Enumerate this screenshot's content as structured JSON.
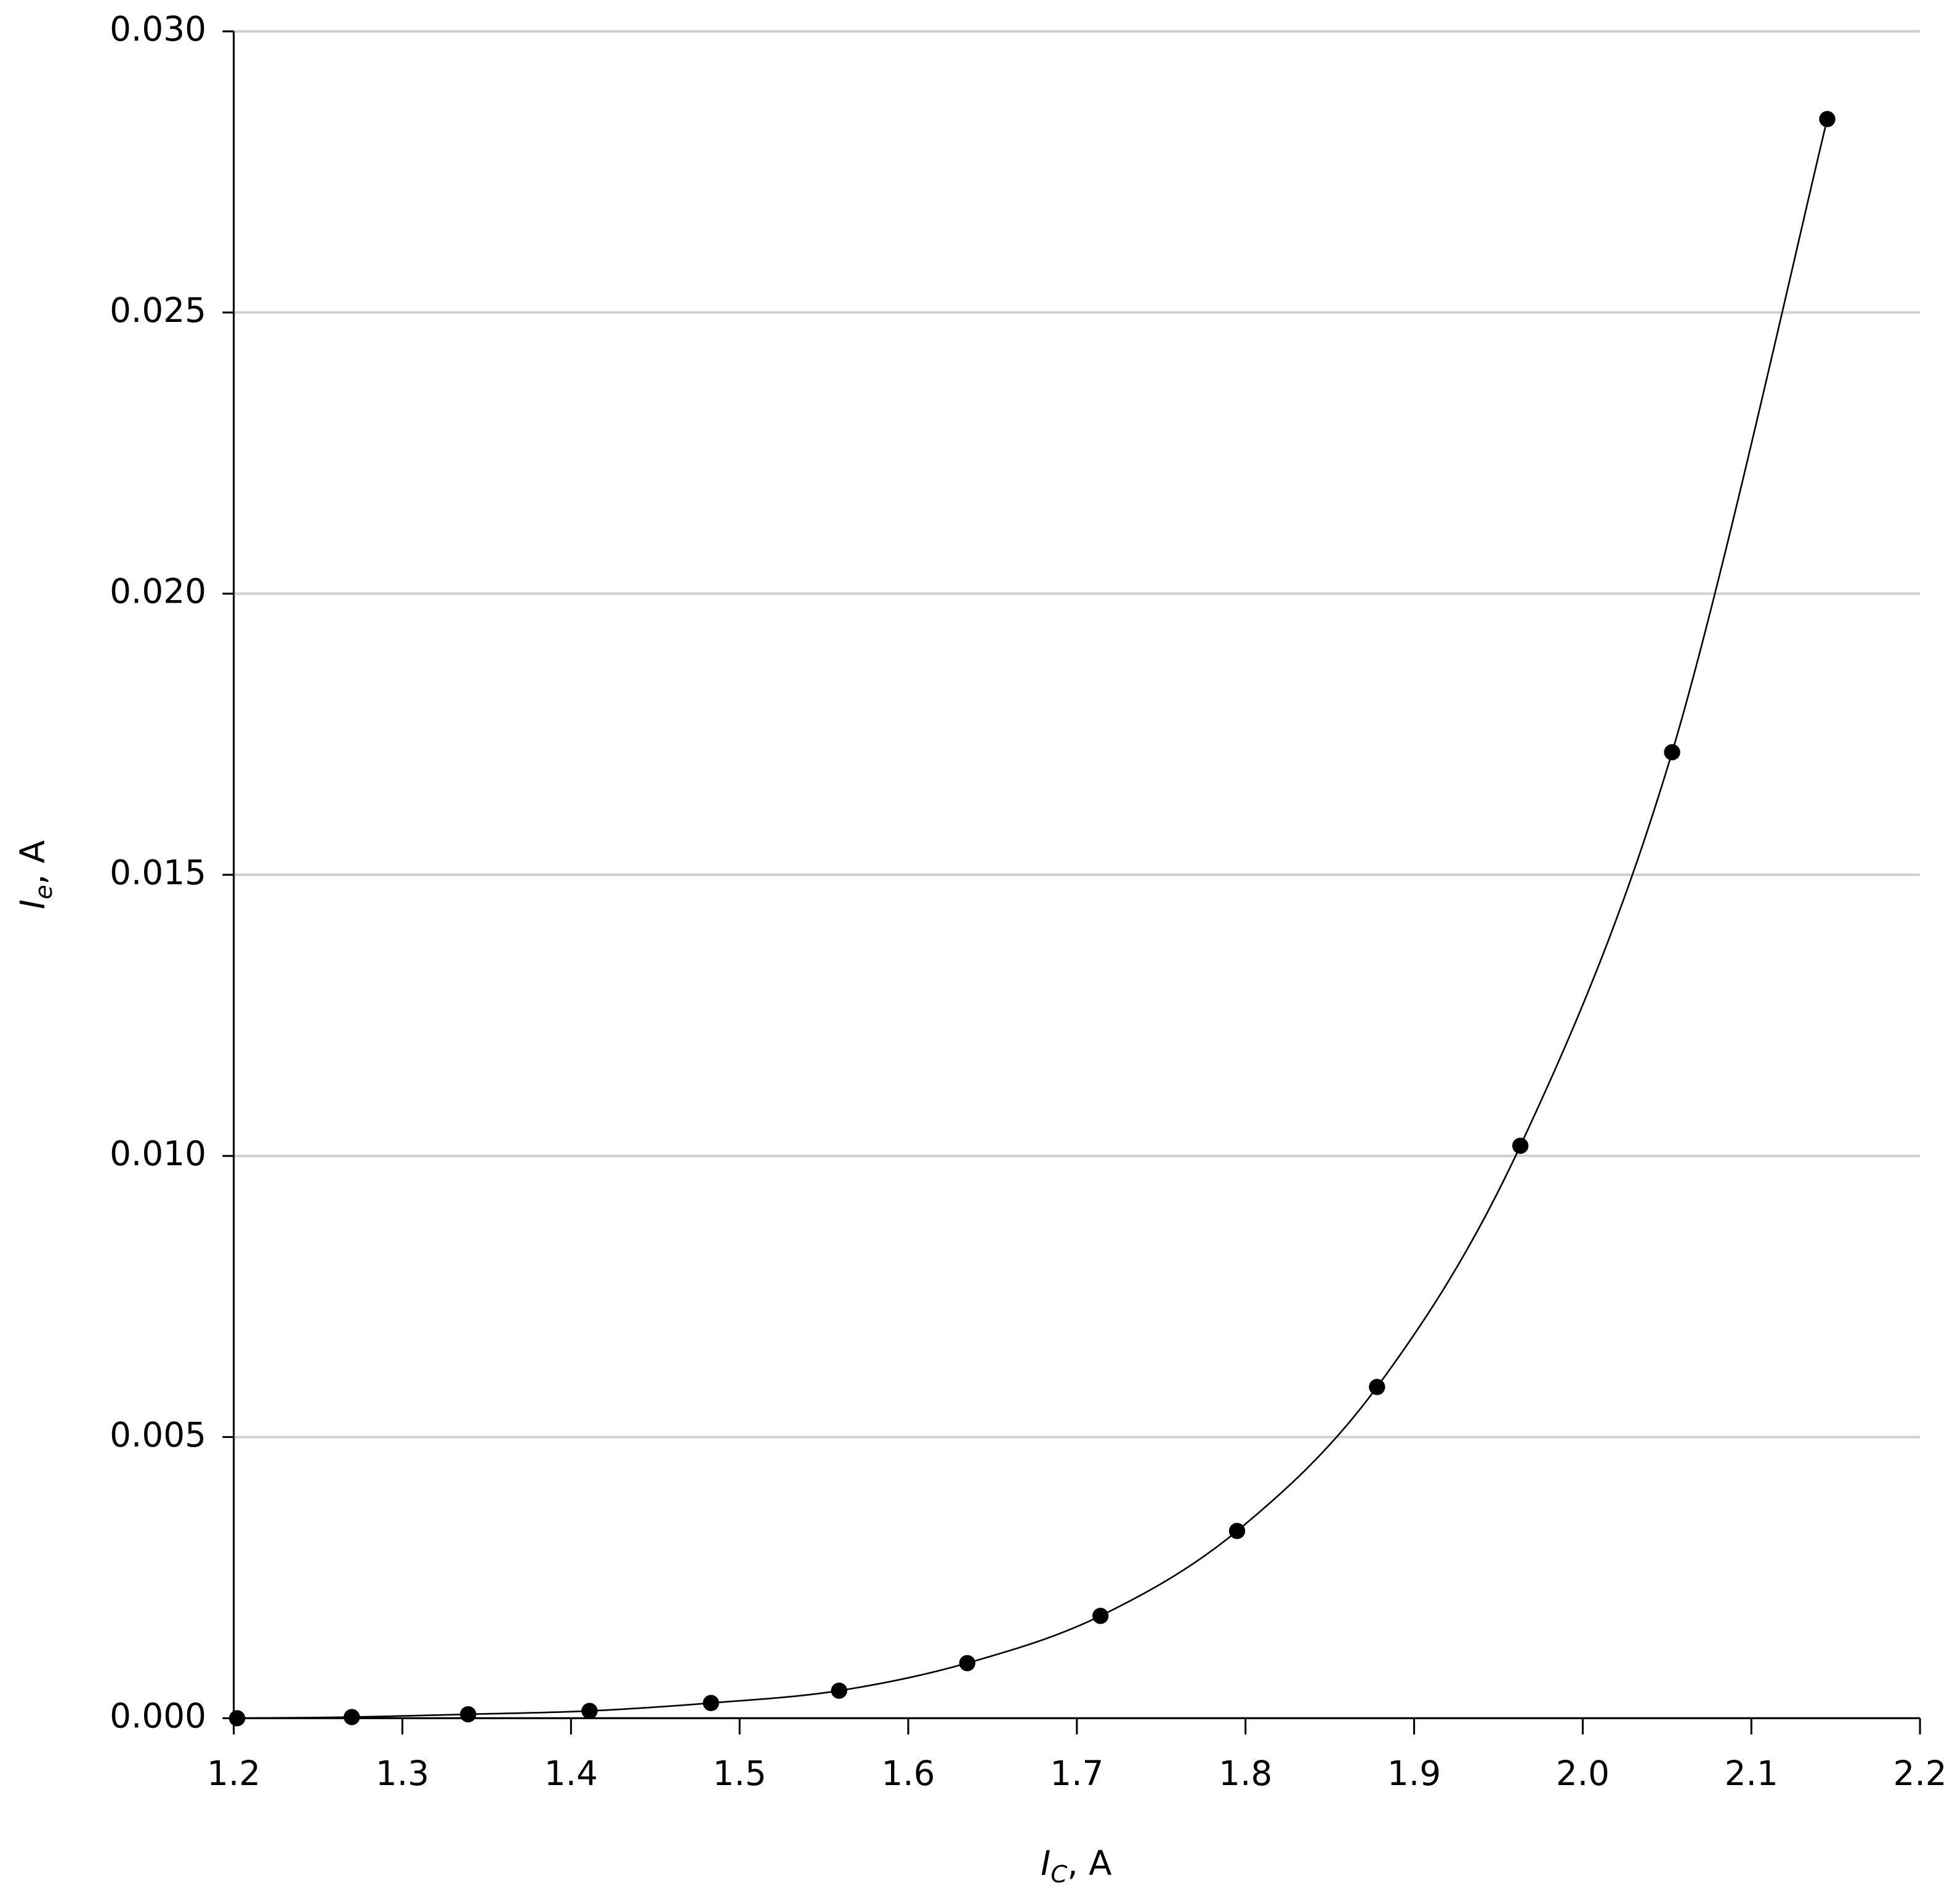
{
  "chart_data": {
    "type": "scatter",
    "xlabel": {
      "symbol": "I",
      "subscript": "C",
      "unit": ", A"
    },
    "ylabel": {
      "symbol": "I",
      "subscript": "e",
      "unit": ", A"
    },
    "xlim": [
      1.2,
      2.2
    ],
    "xticks": [
      1.2,
      1.3,
      1.4,
      1.5,
      1.6,
      1.7,
      1.8,
      1.9,
      {
        "value": 2,
        "label": "2.0"
      },
      2.1,
      2.2
    ],
    "ylim": [
      0,
      0.03
    ],
    "yticks": [
      {
        "value": 0,
        "label": "0.000"
      },
      {
        "value": 0.005,
        "label": "0.005"
      },
      {
        "value": 0.01,
        "label": "0.010"
      },
      {
        "value": 0.015,
        "label": "0.015"
      },
      {
        "value": 0.02,
        "label": "0.020"
      },
      {
        "value": 0.025,
        "label": "0.025"
      },
      {
        "value": 0.03,
        "label": "0.030"
      }
    ],
    "grid": true,
    "series": [
      {
        "color": "#000000",
        "line": true,
        "x": [
          1.202,
          1.27,
          1.339,
          1.411,
          1.483,
          1.559,
          1.635,
          1.714,
          1.795,
          1.878,
          1.963,
          2.053,
          2.145
        ],
        "values": [
          0.0,
          2e-05,
          7e-05,
          0.00013,
          0.00027,
          0.00049,
          0.00098,
          0.00182,
          0.00333,
          0.00589,
          0.01018,
          0.01718,
          0.02844
        ]
      }
    ]
  }
}
